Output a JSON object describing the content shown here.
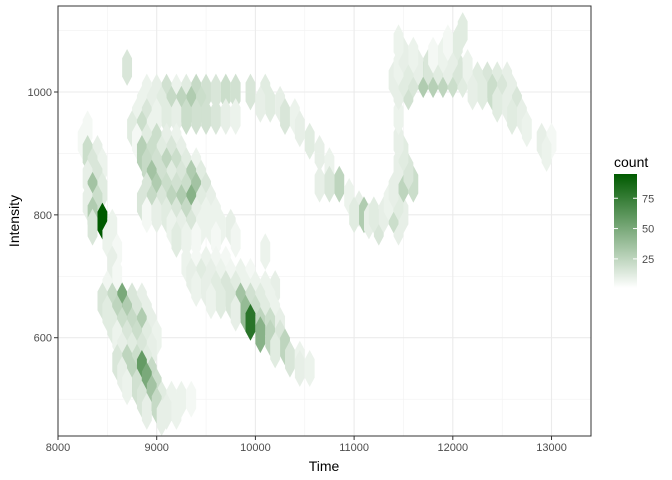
{
  "chart_data": {
    "type": "heatmap",
    "subtype": "hexbin",
    "title": "",
    "xlabel": "Time",
    "ylabel": "Intensity",
    "xlim": [
      8000,
      13400
    ],
    "ylim": [
      440,
      1140
    ],
    "x_ticks": [
      8000,
      9000,
      10000,
      11000,
      12000,
      13000
    ],
    "x_tick_labels": [
      "8000",
      "9000",
      "10000",
      "11000",
      "12000",
      "13000"
    ],
    "y_ticks": [
      600,
      800,
      1000
    ],
    "y_tick_labels": [
      "600",
      "800",
      "1000"
    ],
    "grid": true,
    "legend": {
      "title": "count",
      "position": "right",
      "ticks": [
        25,
        50,
        75
      ],
      "tick_labels": [
        "25",
        "50",
        "75"
      ],
      "range": [
        1,
        95
      ],
      "color_low": "#ffffff",
      "color_high": "#005a00"
    },
    "hex_spacing": {
      "dx": 100,
      "dy": 40
    },
    "cells": [
      [
        8700,
        1040,
        15
      ],
      [
        8900,
        1000,
        8
      ],
      [
        9000,
        1000,
        10
      ],
      [
        9100,
        1000,
        18
      ],
      [
        9200,
        1000,
        8
      ],
      [
        9300,
        1000,
        12
      ],
      [
        9400,
        1000,
        22
      ],
      [
        9500,
        1000,
        18
      ],
      [
        9600,
        1000,
        15
      ],
      [
        9700,
        1000,
        20
      ],
      [
        9800,
        1000,
        18
      ],
      [
        8850,
        980,
        8
      ],
      [
        8950,
        980,
        10
      ],
      [
        9050,
        980,
        12
      ],
      [
        9150,
        980,
        22
      ],
      [
        9250,
        980,
        25
      ],
      [
        9350,
        980,
        30
      ],
      [
        9450,
        980,
        20
      ],
      [
        8800,
        960,
        8
      ],
      [
        8900,
        960,
        15
      ],
      [
        9000,
        960,
        8
      ],
      [
        9100,
        960,
        12
      ],
      [
        9200,
        960,
        10
      ],
      [
        9300,
        960,
        20
      ],
      [
        9400,
        960,
        18
      ],
      [
        9500,
        960,
        18
      ],
      [
        9600,
        960,
        15
      ],
      [
        9700,
        960,
        10
      ],
      [
        9800,
        960,
        8
      ],
      [
        8750,
        940,
        12
      ],
      [
        8850,
        940,
        20
      ],
      [
        8950,
        940,
        8
      ],
      [
        8800,
        920,
        5
      ],
      [
        8900,
        920,
        12
      ],
      [
        9000,
        920,
        20
      ],
      [
        9100,
        920,
        10
      ],
      [
        9200,
        920,
        8
      ],
      [
        8850,
        900,
        28
      ],
      [
        8950,
        900,
        20
      ],
      [
        9050,
        900,
        12
      ],
      [
        9150,
        900,
        15
      ],
      [
        9250,
        900,
        10
      ],
      [
        8900,
        880,
        22
      ],
      [
        9000,
        880,
        18
      ],
      [
        9100,
        880,
        25
      ],
      [
        9200,
        880,
        20
      ],
      [
        9300,
        880,
        12
      ],
      [
        9400,
        880,
        8
      ],
      [
        8950,
        860,
        35
      ],
      [
        9050,
        860,
        18
      ],
      [
        9150,
        860,
        12
      ],
      [
        9250,
        860,
        15
      ],
      [
        9350,
        860,
        30
      ],
      [
        9450,
        860,
        12
      ],
      [
        8900,
        840,
        15
      ],
      [
        9000,
        840,
        30
      ],
      [
        9100,
        840,
        20
      ],
      [
        9200,
        840,
        18
      ],
      [
        9300,
        840,
        20
      ],
      [
        9400,
        840,
        35
      ],
      [
        9500,
        840,
        15
      ],
      [
        8850,
        820,
        15
      ],
      [
        8950,
        820,
        22
      ],
      [
        9050,
        820,
        15
      ],
      [
        9150,
        820,
        25
      ],
      [
        9250,
        820,
        30
      ],
      [
        9350,
        820,
        45
      ],
      [
        9450,
        820,
        12
      ],
      [
        9550,
        820,
        10
      ],
      [
        8900,
        800,
        5
      ],
      [
        9000,
        800,
        10
      ],
      [
        9100,
        800,
        12
      ],
      [
        9200,
        800,
        15
      ],
      [
        9300,
        800,
        22
      ],
      [
        9400,
        800,
        10
      ],
      [
        9500,
        800,
        8
      ],
      [
        9600,
        800,
        8
      ],
      [
        9150,
        780,
        8
      ],
      [
        9250,
        780,
        10
      ],
      [
        9350,
        780,
        15
      ],
      [
        9450,
        780,
        8
      ],
      [
        9550,
        780,
        8
      ],
      [
        9650,
        780,
        8
      ],
      [
        9750,
        780,
        10
      ],
      [
        9200,
        760,
        12
      ],
      [
        9300,
        760,
        8
      ],
      [
        9400,
        760,
        5
      ],
      [
        9600,
        760,
        5
      ],
      [
        9800,
        760,
        6
      ],
      [
        8300,
        940,
        5
      ],
      [
        8250,
        920,
        5
      ],
      [
        8300,
        900,
        20
      ],
      [
        8400,
        900,
        10
      ],
      [
        8350,
        880,
        15
      ],
      [
        8450,
        880,
        8
      ],
      [
        8300,
        860,
        10
      ],
      [
        8400,
        860,
        15
      ],
      [
        8350,
        840,
        35
      ],
      [
        8450,
        840,
        12
      ],
      [
        8300,
        820,
        10
      ],
      [
        8400,
        820,
        20
      ],
      [
        8350,
        800,
        30
      ],
      [
        8450,
        790,
        95
      ],
      [
        8350,
        780,
        15
      ],
      [
        8550,
        780,
        8
      ],
      [
        8500,
        760,
        8
      ],
      [
        8600,
        740,
        5
      ],
      [
        8550,
        720,
        10
      ],
      [
        8600,
        700,
        5
      ],
      [
        8500,
        680,
        6
      ],
      [
        8450,
        660,
        15
      ],
      [
        8550,
        660,
        22
      ],
      [
        8650,
        660,
        50
      ],
      [
        8750,
        660,
        15
      ],
      [
        8850,
        660,
        10
      ],
      [
        8500,
        640,
        12
      ],
      [
        8600,
        640,
        25
      ],
      [
        8700,
        640,
        30
      ],
      [
        8800,
        640,
        15
      ],
      [
        8900,
        640,
        10
      ],
      [
        8550,
        620,
        12
      ],
      [
        8650,
        620,
        20
      ],
      [
        8750,
        620,
        22
      ],
      [
        8850,
        620,
        30
      ],
      [
        8950,
        620,
        10
      ],
      [
        8600,
        600,
        8
      ],
      [
        8700,
        600,
        15
      ],
      [
        8800,
        600,
        20
      ],
      [
        8900,
        600,
        12
      ],
      [
        9000,
        600,
        8
      ],
      [
        8650,
        580,
        10
      ],
      [
        8750,
        580,
        12
      ],
      [
        8850,
        580,
        15
      ],
      [
        8950,
        580,
        10
      ],
      [
        8600,
        560,
        15
      ],
      [
        8700,
        560,
        25
      ],
      [
        8800,
        560,
        20
      ],
      [
        8900,
        560,
        12
      ],
      [
        8650,
        540,
        10
      ],
      [
        8750,
        540,
        25
      ],
      [
        8850,
        550,
        58
      ],
      [
        8950,
        540,
        22
      ],
      [
        8700,
        520,
        8
      ],
      [
        8800,
        520,
        18
      ],
      [
        8900,
        530,
        50
      ],
      [
        9000,
        520,
        20
      ],
      [
        8850,
        500,
        15
      ],
      [
        8950,
        510,
        35
      ],
      [
        9050,
        500,
        12
      ],
      [
        9150,
        500,
        8
      ],
      [
        9250,
        500,
        8
      ],
      [
        9350,
        500,
        5
      ],
      [
        8900,
        480,
        10
      ],
      [
        9000,
        490,
        22
      ],
      [
        9100,
        480,
        10
      ],
      [
        9200,
        480,
        8
      ],
      [
        9050,
        470,
        10
      ],
      [
        9300,
        720,
        8
      ],
      [
        9400,
        720,
        5
      ],
      [
        9500,
        720,
        8
      ],
      [
        9600,
        720,
        6
      ],
      [
        9700,
        720,
        5
      ],
      [
        9350,
        700,
        10
      ],
      [
        9450,
        700,
        12
      ],
      [
        9550,
        700,
        10
      ],
      [
        9650,
        700,
        8
      ],
      [
        9750,
        700,
        6
      ],
      [
        9850,
        700,
        8
      ],
      [
        9950,
        700,
        5
      ],
      [
        9400,
        680,
        8
      ],
      [
        9500,
        680,
        10
      ],
      [
        9600,
        680,
        12
      ],
      [
        9700,
        680,
        15
      ],
      [
        9800,
        680,
        12
      ],
      [
        9900,
        680,
        8
      ],
      [
        10000,
        680,
        8
      ],
      [
        10100,
        680,
        8
      ],
      [
        10200,
        680,
        10
      ],
      [
        9550,
        660,
        8
      ],
      [
        9650,
        660,
        12
      ],
      [
        9750,
        660,
        15
      ],
      [
        9850,
        660,
        35
      ],
      [
        9950,
        660,
        18
      ],
      [
        10050,
        660,
        12
      ],
      [
        10150,
        660,
        8
      ],
      [
        9800,
        640,
        10
      ],
      [
        9900,
        640,
        40
      ],
      [
        10000,
        640,
        20
      ],
      [
        10100,
        640,
        12
      ],
      [
        10200,
        640,
        8
      ],
      [
        9950,
        625,
        80
      ],
      [
        10050,
        620,
        25
      ],
      [
        10150,
        620,
        20
      ],
      [
        10250,
        620,
        10
      ],
      [
        10050,
        605,
        45
      ],
      [
        10150,
        600,
        25
      ],
      [
        10250,
        600,
        15
      ],
      [
        10300,
        585,
        25
      ],
      [
        10200,
        580,
        12
      ],
      [
        10350,
        565,
        15
      ],
      [
        10450,
        565,
        8
      ],
      [
        10450,
        550,
        10
      ],
      [
        10550,
        550,
        8
      ],
      [
        10100,
        740,
        8
      ],
      [
        9950,
        1000,
        15
      ],
      [
        10100,
        1000,
        12
      ],
      [
        10050,
        980,
        10
      ],
      [
        10150,
        980,
        12
      ],
      [
        10250,
        980,
        10
      ],
      [
        10300,
        960,
        15
      ],
      [
        10400,
        960,
        8
      ],
      [
        10450,
        940,
        10
      ],
      [
        10550,
        920,
        12
      ],
      [
        10650,
        900,
        10
      ],
      [
        10750,
        880,
        8
      ],
      [
        10650,
        850,
        10
      ],
      [
        10750,
        850,
        15
      ],
      [
        10850,
        850,
        25
      ],
      [
        10950,
        830,
        8
      ],
      [
        11050,
        810,
        10
      ],
      [
        11000,
        800,
        12
      ],
      [
        11100,
        800,
        30
      ],
      [
        11150,
        790,
        10
      ],
      [
        11250,
        780,
        15
      ],
      [
        11450,
        780,
        10
      ],
      [
        11200,
        800,
        12
      ],
      [
        11300,
        800,
        10
      ],
      [
        11400,
        800,
        20
      ],
      [
        11500,
        800,
        10
      ],
      [
        11350,
        820,
        8
      ],
      [
        11450,
        820,
        12
      ],
      [
        11400,
        840,
        10
      ],
      [
        11500,
        850,
        25
      ],
      [
        11600,
        850,
        20
      ],
      [
        11450,
        880,
        10
      ],
      [
        11550,
        870,
        15
      ],
      [
        11500,
        900,
        12
      ],
      [
        11450,
        920,
        10
      ],
      [
        11450,
        960,
        8
      ],
      [
        11450,
        1000,
        10
      ],
      [
        11550,
        1000,
        18
      ],
      [
        11500,
        1020,
        12
      ],
      [
        11400,
        1020,
        10
      ],
      [
        11600,
        1020,
        15
      ],
      [
        11700,
        1020,
        30
      ],
      [
        11800,
        1020,
        28
      ],
      [
        11900,
        1020,
        25
      ],
      [
        12000,
        1020,
        20
      ],
      [
        12100,
        1020,
        12
      ],
      [
        11450,
        1040,
        8
      ],
      [
        11550,
        1040,
        12
      ],
      [
        11650,
        1040,
        10
      ],
      [
        11750,
        1040,
        15
      ],
      [
        11850,
        1040,
        12
      ],
      [
        11950,
        1040,
        10
      ],
      [
        12050,
        1040,
        15
      ],
      [
        12150,
        1040,
        8
      ],
      [
        11500,
        1060,
        10
      ],
      [
        11600,
        1060,
        8
      ],
      [
        11800,
        1060,
        5
      ],
      [
        11900,
        1060,
        8
      ],
      [
        12000,
        1060,
        10
      ],
      [
        11450,
        1080,
        8
      ],
      [
        12050,
        1080,
        12
      ],
      [
        11950,
        1080,
        5
      ],
      [
        12100,
        1100,
        12
      ],
      [
        12250,
        1020,
        12
      ],
      [
        12350,
        1020,
        15
      ],
      [
        12450,
        1020,
        12
      ],
      [
        12550,
        1020,
        10
      ],
      [
        12200,
        1000,
        10
      ],
      [
        12300,
        1000,
        12
      ],
      [
        12400,
        1000,
        20
      ],
      [
        12500,
        1000,
        15
      ],
      [
        12600,
        1000,
        10
      ],
      [
        12450,
        980,
        12
      ],
      [
        12550,
        980,
        10
      ],
      [
        12650,
        980,
        15
      ],
      [
        12600,
        960,
        12
      ],
      [
        12700,
        960,
        10
      ],
      [
        12750,
        940,
        8
      ],
      [
        12900,
        920,
        10
      ],
      [
        13000,
        920,
        5
      ],
      [
        12950,
        900,
        8
      ]
    ]
  }
}
